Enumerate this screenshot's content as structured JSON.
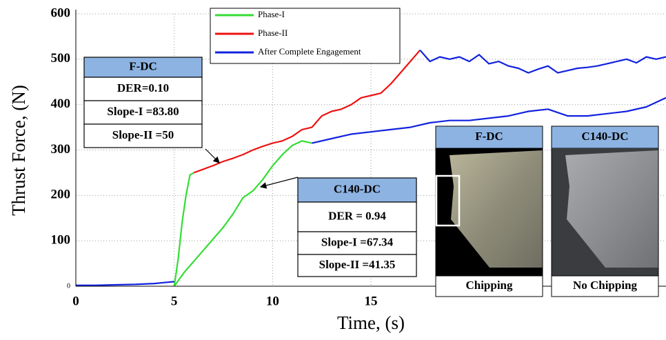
{
  "chart_data": {
    "type": "line",
    "xlabel": "Time, (s)",
    "ylabel": "Thrust Force, (N)",
    "xlim": [
      0,
      30
    ],
    "ylim": [
      0,
      600
    ],
    "xticks": [
      0,
      5,
      10,
      15
    ],
    "yticks": [
      0,
      100,
      200,
      300,
      400,
      500,
      600
    ],
    "grid": true,
    "series": [
      {
        "name": "Phase-I",
        "color": "#33dd33",
        "curves": [
          {
            "x": [
              5,
              5.2,
              5.4,
              5.6,
              5.8,
              6
            ],
            "values": [
              0,
              60,
              140,
              200,
              245,
              250
            ]
          },
          {
            "x": [
              5,
              5.5,
              6,
              6.5,
              7,
              7.5,
              8,
              8.5,
              9,
              9.5,
              10,
              10.5,
              11,
              11.5,
              12
            ],
            "values": [
              0,
              30,
              55,
              80,
              105,
              130,
              160,
              195,
              210,
              235,
              265,
              290,
              310,
              320,
              315
            ]
          }
        ]
      },
      {
        "name": "Phase-II",
        "color": "#ee1111",
        "curves": [
          {
            "x": [
              6,
              6.5,
              7,
              7.5,
              8,
              8.5,
              9,
              9.5,
              10,
              10.5,
              11,
              11.5,
              12,
              12.5,
              13,
              13.5,
              14,
              14.5,
              15,
              15.5,
              16,
              16.5,
              17,
              17.5
            ],
            "values": [
              250,
              258,
              266,
              275,
              282,
              290,
              300,
              308,
              315,
              320,
              330,
              345,
              350,
              375,
              385,
              390,
              400,
              415,
              420,
              425,
              445,
              470,
              495,
              520
            ]
          }
        ]
      },
      {
        "name": "After Complete Engagement",
        "color": "#1122dd",
        "curves": [
          {
            "x": [
              0,
              1,
              2,
              3,
              4,
              4.5,
              5
            ],
            "values": [
              2,
              2,
              3,
              4,
              6,
              8,
              10
            ]
          },
          {
            "x": [
              17.5,
              18,
              18.5,
              19,
              19.5,
              20,
              20.5,
              21,
              21.5,
              22,
              22.5,
              23,
              23.5,
              24,
              24.5,
              25,
              25.5,
              26,
              26.5,
              27,
              27.5,
              28,
              28.5,
              29,
              29.5,
              30
            ],
            "values": [
              520,
              495,
              505,
              500,
              505,
              495,
              510,
              490,
              495,
              485,
              480,
              470,
              478,
              485,
              470,
              475,
              480,
              482,
              485,
              490,
              495,
              500,
              492,
              505,
              500,
              505
            ]
          },
          {
            "x": [
              12,
              13,
              14,
              15,
              16,
              17,
              18,
              19,
              20,
              21,
              22,
              23,
              24,
              25,
              26,
              27,
              28,
              29,
              30
            ],
            "values": [
              315,
              325,
              335,
              340,
              345,
              350,
              360,
              365,
              365,
              370,
              375,
              385,
              390,
              375,
              375,
              380,
              385,
              395,
              415
            ]
          }
        ]
      }
    ],
    "annotations": [
      {
        "title": "F-DC",
        "rows": [
          "DER=0.10",
          "Slope-I =83.80",
          "Slope-II =50"
        ]
      },
      {
        "title": "C140-DC",
        "rows": [
          "DER = 0.94",
          "Slope-I =67.34",
          "Slope-II =41.35"
        ]
      }
    ],
    "panels": [
      {
        "title": "F-DC",
        "caption": "Chipping"
      },
      {
        "title": "C140-DC",
        "caption": "No Chipping"
      }
    ]
  }
}
